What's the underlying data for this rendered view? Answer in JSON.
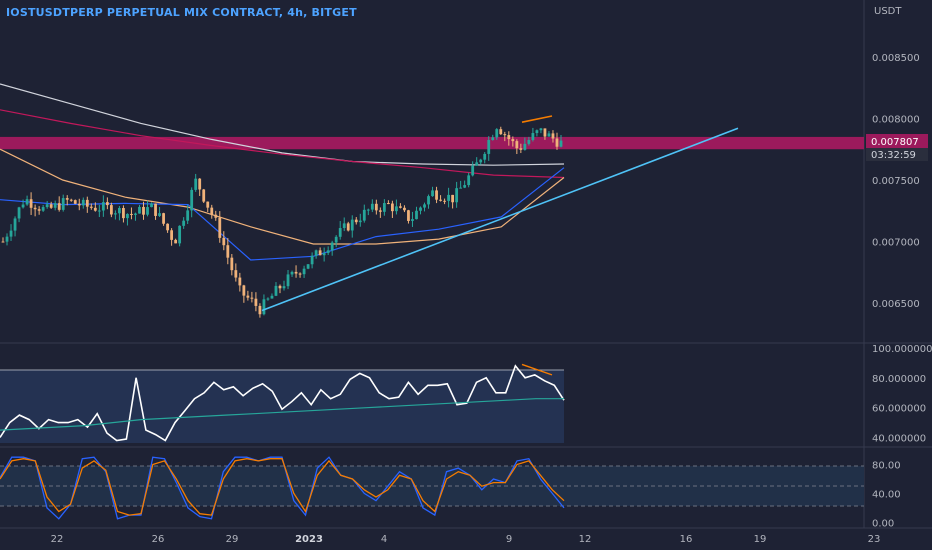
{
  "header": {
    "title": "IOSTUSDTPERP PERPETUAL MIX CONTRACT, 4h, BITGET",
    "currency": "USDT"
  },
  "price_label": {
    "value": "0.007807",
    "countdown": "03:32:59"
  },
  "chart_data": [
    {
      "type": "line",
      "panel": "price",
      "candlesticks": true,
      "y_ticks": [
        "0.008500",
        "0.008000",
        "0.007500",
        "0.007000",
        "0.006500"
      ],
      "ylim": [
        0.0062,
        0.0088
      ],
      "x_ticks": [
        "22",
        "26",
        "29",
        "2023",
        "4",
        "9",
        "12",
        "16",
        "19",
        "23"
      ],
      "resistance_zone": [
        0.00775,
        0.00785
      ],
      "trendline": {
        "from": [
          "30",
          0.00644
        ],
        "to": [
          "20",
          0.00792
        ]
      },
      "series": [
        {
          "color": "#d1d4dc",
          "values": [
            0.00828,
            0.00812,
            0.00796,
            0.00783,
            0.00772,
            0.00765,
            0.00763,
            0.00762,
            0.00763
          ]
        },
        {
          "color": "#c2185b",
          "values": [
            0.00807,
            0.00796,
            0.00786,
            0.00778,
            0.00771,
            0.00765,
            0.0076,
            0.00754,
            0.00752
          ]
        },
        {
          "color": "#f0b27a",
          "values": [
            0.00775,
            0.0075,
            0.00736,
            0.00728,
            0.00712,
            0.00698,
            0.00698,
            0.00702,
            0.00712,
            0.00752
          ]
        },
        {
          "color": "#2962ff",
          "values": [
            0.00734,
            0.0073,
            0.00731,
            0.0073,
            0.00685,
            0.00688,
            0.00704,
            0.0071,
            0.0072,
            0.0076
          ]
        }
      ],
      "price_path": [
        0.007,
        0.00735,
        0.00725,
        0.00733,
        0.00728,
        0.00727,
        0.00722,
        0.00728,
        0.007,
        0.0075,
        0.00712,
        0.0066,
        0.00645,
        0.00665,
        0.0068,
        0.00695,
        0.00712,
        0.00725,
        0.0073,
        0.00718,
        0.0074,
        0.00735,
        0.0076,
        0.00795,
        0.00775,
        0.0079,
        0.0078
      ]
    },
    {
      "type": "line",
      "panel": "rsi",
      "y_ticks": [
        "100.000000",
        "80.000000",
        "60.000000",
        "40.000000"
      ],
      "ylim": [
        35,
        102
      ],
      "series": [
        {
          "color": "#ffffff",
          "values": [
            40,
            50,
            55,
            52,
            46,
            52,
            50,
            50,
            52,
            47,
            56,
            43,
            38,
            39,
            80,
            45,
            42,
            38,
            50,
            58,
            66,
            70,
            77,
            72,
            74,
            68,
            73,
            76,
            71,
            59,
            64,
            70,
            62,
            72,
            66,
            69,
            79,
            83,
            80,
            70,
            66,
            67,
            77,
            69,
            75,
            75,
            76,
            62,
            63,
            77,
            80,
            70,
            70,
            88,
            80,
            82,
            78,
            75,
            65
          ]
        },
        {
          "color": "#26a69a",
          "values": [
            45,
            46,
            47,
            48,
            50,
            52,
            53,
            54,
            55,
            56,
            57,
            58,
            59,
            60,
            61,
            62,
            63,
            64,
            65,
            66,
            66
          ]
        }
      ]
    },
    {
      "type": "line",
      "panel": "stoch",
      "y_ticks": [
        "80.00",
        "40.00",
        "0.00"
      ],
      "ylim": [
        -5,
        100
      ],
      "series": [
        {
          "color": "#2962ff",
          "values": [
            62,
            90,
            90,
            85,
            20,
            5,
            25,
            88,
            90,
            70,
            5,
            10,
            10,
            90,
            88,
            55,
            20,
            8,
            5,
            70,
            90,
            90,
            85,
            90,
            90,
            30,
            10,
            75,
            90,
            65,
            60,
            40,
            30,
            50,
            70,
            60,
            20,
            10,
            70,
            75,
            65,
            45,
            60,
            55,
            85,
            88,
            60,
            40,
            20
          ]
        },
        {
          "color": "#f57c00",
          "values": [
            60,
            85,
            88,
            85,
            35,
            15,
            25,
            75,
            85,
            72,
            15,
            10,
            12,
            80,
            85,
            60,
            30,
            12,
            10,
            60,
            85,
            88,
            85,
            88,
            88,
            40,
            15,
            65,
            85,
            65,
            60,
            45,
            35,
            45,
            65,
            60,
            30,
            15,
            60,
            70,
            65,
            50,
            55,
            55,
            80,
            85,
            65,
            45,
            30
          ]
        }
      ]
    }
  ]
}
